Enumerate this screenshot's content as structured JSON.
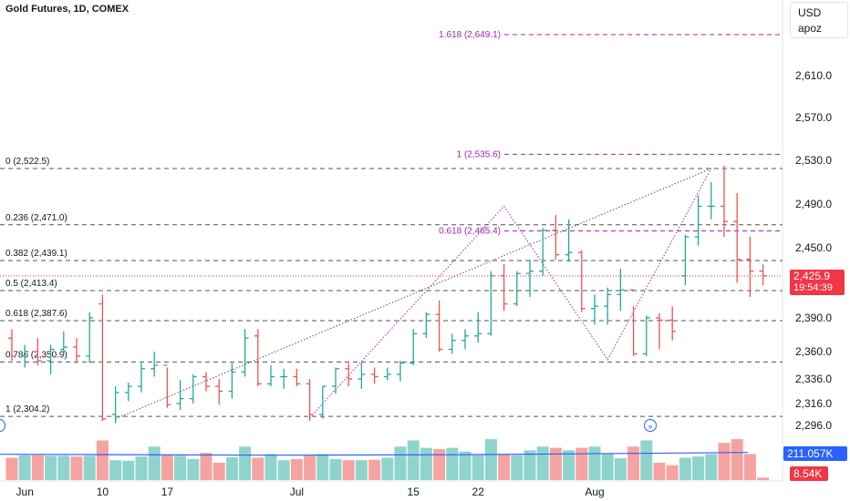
{
  "header": {
    "title": "Gold Futures, 1D, COMEX"
  },
  "scale_box": {
    "currency": "USD",
    "user": "apoz"
  },
  "price_tag": {
    "price": "2,425.9",
    "countdown": "19:54:39"
  },
  "volume_tags": {
    "ma": "211.057K",
    "current": "8.54K"
  },
  "colors": {
    "up": "#26a69a",
    "down": "#ef5350",
    "fib": "#9c27b0",
    "grid_line": "#555555",
    "price_line": "#f23645",
    "vol_ma": "#2962ff"
  },
  "icons": {
    "nav_forward": "double-chevron-right-icon",
    "nav_back": "circle-icon"
  },
  "chart_data": {
    "type": "ohlc",
    "symbol": "Gold Futures",
    "interval": "1D",
    "exchange": "COMEX",
    "y_axis_ticks": [
      "2,296.0",
      "2,316.0",
      "2,336.0",
      "2,360.0",
      "2,390.0",
      "2,450.0",
      "2,490.0",
      "2,530.0",
      "2,570.0",
      "2,610.0"
    ],
    "y_axis_tick_values": [
      2296,
      2316,
      2336,
      2360,
      2390,
      2450,
      2490,
      2530,
      2570,
      2610
    ],
    "x_axis_ticks": [
      "Jun",
      "10",
      "17",
      "Jul",
      "15",
      "22",
      "Aug"
    ],
    "x_axis_tick_bar_index": [
      1,
      7,
      12,
      22,
      31,
      36,
      45
    ],
    "ylim": [
      2290,
      2660
    ],
    "last_price": 2425.9,
    "fib_levels_left": [
      {
        "label": "0 (2,522.5)",
        "value": 2522.5
      },
      {
        "label": "0.236 (2,471.0)",
        "value": 2471.0
      },
      {
        "label": "0.382 (2,439.1)",
        "value": 2439.1
      },
      {
        "label": "0.5 (2,413.4)",
        "value": 2413.4
      },
      {
        "label": "0.618 (2,387.6)",
        "value": 2387.6
      },
      {
        "label": "0.786 (2,350.9)",
        "value": 2350.9
      },
      {
        "label": "1 (2,304.2)",
        "value": 2304.2
      }
    ],
    "fib_extension": [
      {
        "label": "1.618 (2,649.1)",
        "value": 2649.1
      },
      {
        "label": "1 (2,535.6)",
        "value": 2535.6
      },
      {
        "label": "0.618 (2,465.4)",
        "value": 2465.4
      }
    ],
    "bars": [
      [
        2372,
        2380,
        2352,
        2356
      ],
      [
        2356,
        2366,
        2346,
        2360
      ],
      [
        2360,
        2372,
        2348,
        2352
      ],
      [
        2352,
        2366,
        2340,
        2362
      ],
      [
        2362,
        2378,
        2356,
        2364
      ],
      [
        2364,
        2372,
        2350,
        2356
      ],
      [
        2356,
        2395,
        2350,
        2390
      ],
      [
        2402,
        2410,
        2300,
        2302
      ],
      [
        2306,
        2330,
        2298,
        2325
      ],
      [
        2325,
        2333,
        2318,
        2330
      ],
      [
        2330,
        2350,
        2325,
        2345
      ],
      [
        2345,
        2360,
        2338,
        2348
      ],
      [
        2348,
        2346,
        2312,
        2315
      ],
      [
        2316,
        2335,
        2310,
        2320
      ],
      [
        2320,
        2340,
        2316,
        2338
      ],
      [
        2338,
        2342,
        2326,
        2330
      ],
      [
        2330,
        2336,
        2315,
        2326
      ],
      [
        2326,
        2350,
        2320,
        2342
      ],
      [
        2342,
        2380,
        2338,
        2372
      ],
      [
        2374,
        2380,
        2330,
        2332
      ],
      [
        2332,
        2348,
        2330,
        2338
      ],
      [
        2338,
        2345,
        2328,
        2338
      ],
      [
        2338,
        2345,
        2330,
        2332
      ],
      [
        2332,
        2336,
        2300,
        2306
      ],
      [
        2306,
        2330,
        2302,
        2330
      ],
      [
        2330,
        2346,
        2324,
        2345
      ],
      [
        2345,
        2350,
        2330,
        2336
      ],
      [
        2336,
        2350,
        2328,
        2340
      ],
      [
        2340,
        2346,
        2332,
        2338
      ],
      [
        2338,
        2346,
        2335,
        2340
      ],
      [
        2340,
        2352,
        2334,
        2350
      ],
      [
        2350,
        2380,
        2348,
        2376
      ],
      [
        2376,
        2395,
        2372,
        2393
      ],
      [
        2393,
        2405,
        2360,
        2362
      ],
      [
        2362,
        2376,
        2358,
        2370
      ],
      [
        2370,
        2380,
        2362,
        2374
      ],
      [
        2374,
        2395,
        2368,
        2376
      ],
      [
        2376,
        2430,
        2374,
        2426
      ],
      [
        2426,
        2436,
        2396,
        2402
      ],
      [
        2402,
        2430,
        2400,
        2428
      ],
      [
        2428,
        2440,
        2408,
        2430
      ],
      [
        2430,
        2468,
        2426,
        2466
      ],
      [
        2466,
        2480,
        2440,
        2444
      ],
      [
        2444,
        2476,
        2438,
        2446
      ],
      [
        2446,
        2448,
        2395,
        2398
      ],
      [
        2398,
        2410,
        2384,
        2400
      ],
      [
        2400,
        2416,
        2384,
        2410
      ],
      [
        2410,
        2432,
        2396,
        2414
      ],
      [
        2414,
        2400,
        2356,
        2358
      ],
      [
        2358,
        2392,
        2356,
        2390
      ],
      [
        2390,
        2394,
        2362,
        2388
      ],
      [
        2388,
        2400,
        2370,
        2378
      ],
      [
        2426,
        2462,
        2418,
        2460
      ],
      [
        2460,
        2498,
        2452,
        2488
      ],
      [
        2488,
        2510,
        2476,
        2488
      ],
      [
        2488,
        2525,
        2460,
        2474
      ],
      [
        2474,
        2500,
        2420,
        2440
      ],
      [
        2440,
        2460,
        2408,
        2430
      ],
      [
        2430,
        2436,
        2418,
        2426
      ]
    ],
    "volume_labels": [
      "211.057K",
      "8.54K"
    ],
    "volume_relative": [
      0.9,
      1.0,
      1.0,
      0.98,
      0.98,
      0.95,
      0.98,
      1.6,
      0.8,
      0.78,
      0.95,
      1.35,
      1.0,
      0.98,
      0.85,
      1.1,
      0.7,
      0.92,
      1.35,
      0.9,
      1.05,
      0.8,
      0.85,
      0.98,
      1.05,
      0.85,
      0.8,
      0.8,
      0.82,
      0.9,
      1.35,
      1.6,
      1.3,
      1.25,
      1.3,
      1.15,
      1.0,
      1.65,
      1.05,
      1.0,
      1.2,
      1.35,
      1.3,
      1.2,
      1.3,
      1.35,
      1.08,
      0.88,
      1.35,
      1.6,
      0.7,
      0.6,
      0.9,
      0.95,
      1.05,
      1.5,
      1.65,
      1.05,
      0.1
    ]
  }
}
